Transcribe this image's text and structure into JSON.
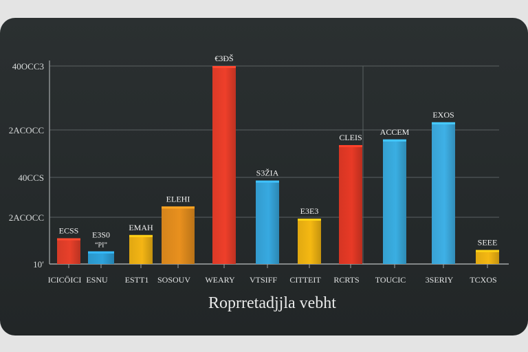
{
  "chart_data": {
    "type": "bar",
    "title": "",
    "xlabel": "Roprretadjjla vebht",
    "ylabel": "",
    "yticks": [
      {
        "label": "10′",
        "value": 0
      },
      {
        "label": "2ACOCC",
        "value": 1
      },
      {
        "label": "40CCS",
        "value": 2
      },
      {
        "label": "2ACOCC",
        "value": 3
      },
      {
        "label": "40OCC3",
        "value": 4
      }
    ],
    "ylim": [
      0,
      4
    ],
    "grid": true,
    "legend": "none",
    "categories": [
      "ICICÖICI",
      "ESNU",
      "ESTT1",
      "SOSOUV",
      "WEARY",
      "VTSIFF",
      "CITTEIT",
      "RCRTS",
      "TOUCIC",
      "3SERIY",
      "TCXOS"
    ],
    "values": [
      0.55,
      0.27,
      0.62,
      1.27,
      4.0,
      1.92,
      0.97,
      2.68,
      2.8,
      3.12,
      0.3
    ],
    "data_labels": [
      "ECSS",
      "E3S0",
      "EMAH",
      "ELEHI",
      "€3ĐŠ",
      "S3ŽIA",
      "E3E3",
      "CLEIS",
      "ACCEM",
      "EXOS",
      "SEEE"
    ],
    "data_sublabels": [
      "",
      "“PI”",
      "",
      "",
      "",
      "",
      "",
      "",
      "",
      "",
      ""
    ],
    "colors": [
      "#e8402a",
      "#2ea3dc",
      "#f4b514",
      "#e8901e",
      "#ee3f2a",
      "#37a9e0",
      "#f5b812",
      "#e83a26",
      "#3aaee2",
      "#3eb0e6",
      "#f5b813"
    ]
  }
}
